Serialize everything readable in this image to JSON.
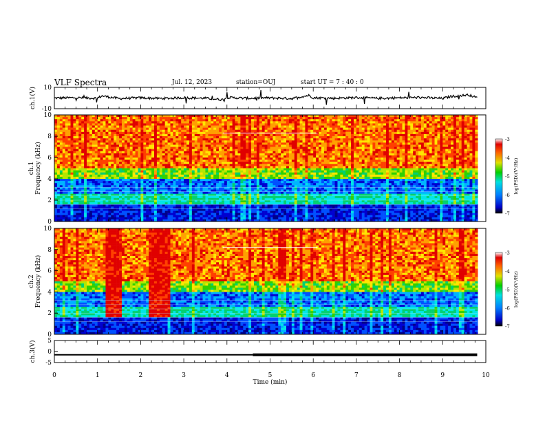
{
  "header": {
    "title": "VLF Spectra",
    "date": "Jul. 12, 2023",
    "station": "station=OUJ",
    "start_ut": "start UT =  7 : 40 : 0"
  },
  "chart_data": [
    {
      "type": "line",
      "name": "ch1-waveform",
      "ylabel": "ch.1(V)",
      "ylim": [
        -10,
        10
      ],
      "yticks": [
        10,
        -10
      ],
      "x": [
        0,
        0.5,
        1,
        1.1,
        1.5,
        2,
        2.5,
        3,
        3.5,
        3.9,
        4,
        4.5,
        5,
        5.5,
        5.9,
        6,
        6.5,
        7,
        7.5,
        8,
        8.5,
        9,
        9.2,
        9.6,
        9.8
      ],
      "y": [
        0,
        0.3,
        -0.2,
        2,
        -0.5,
        0.2,
        -0.4,
        0.3,
        -0.2,
        -1.5,
        0.5,
        -0.3,
        0.2,
        -0.5,
        2.5,
        0.3,
        -0.2,
        0.4,
        -0.3,
        0.2,
        0.5,
        -0.4,
        1.5,
        3,
        0.2
      ]
    },
    {
      "type": "heatmap",
      "name": "ch1-spectrogram",
      "ylabel": "ch.1 Frequency (kHz)",
      "xlim": [
        0,
        10
      ],
      "ylim": [
        0,
        10
      ],
      "yticks": [
        0,
        2,
        4,
        6,
        8,
        10
      ],
      "colorbar": {
        "label": "log(PSD)(V²/Hz)",
        "range": [
          -7,
          -3
        ],
        "ticks": [
          -3,
          -4,
          -5,
          -6,
          -7
        ]
      }
    },
    {
      "type": "heatmap",
      "name": "ch2-spectrogram",
      "ylabel": "ch.2 Frequency (kHz)",
      "xlim": [
        0,
        10
      ],
      "ylim": [
        0,
        10
      ],
      "yticks": [
        0,
        2,
        4,
        6,
        8,
        10
      ],
      "colorbar": {
        "label": "log(PSD)(V²/Hz)",
        "range": [
          -7,
          -3
        ],
        "ticks": [
          -3,
          -4,
          -5,
          -6,
          -7
        ]
      }
    },
    {
      "type": "line",
      "name": "ch3-level",
      "ylabel": "ch.3(V)",
      "ylim": [
        -5,
        5
      ],
      "yticks": [
        5,
        0,
        -5
      ],
      "x": [
        0,
        9.8
      ],
      "y": [
        -1.5,
        -1.5
      ],
      "xlabel": "Time (min)",
      "xticks": [
        0,
        1,
        2,
        3,
        4,
        5,
        6,
        7,
        8,
        9,
        10
      ]
    }
  ]
}
